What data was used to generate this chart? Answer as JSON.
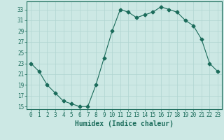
{
  "xlabel": "Humidex (Indice chaleur)",
  "x": [
    0,
    1,
    2,
    3,
    4,
    5,
    6,
    7,
    8,
    9,
    10,
    11,
    12,
    13,
    14,
    15,
    16,
    17,
    18,
    19,
    20,
    21,
    22,
    23
  ],
  "y": [
    23,
    21.5,
    19,
    17.5,
    16,
    15.5,
    15,
    15,
    19,
    24,
    29,
    33,
    32.5,
    31.5,
    32,
    32.5,
    33.5,
    33,
    32.5,
    31,
    30,
    27.5,
    23,
    21.5
  ],
  "line_color": "#1a6b5a",
  "marker": "D",
  "marker_size": 2.5,
  "bg_color": "#cce8e4",
  "grid_color": "#b0d4d0",
  "ylim": [
    14.5,
    34.5
  ],
  "yticks": [
    15,
    17,
    19,
    21,
    23,
    25,
    27,
    29,
    31,
    33
  ],
  "xlim": [
    -0.5,
    23.5
  ],
  "xticks": [
    0,
    1,
    2,
    3,
    4,
    5,
    6,
    7,
    8,
    9,
    10,
    11,
    12,
    13,
    14,
    15,
    16,
    17,
    18,
    19,
    20,
    21,
    22,
    23
  ],
  "tick_label_fontsize": 5.5,
  "xlabel_fontsize": 7,
  "label_color": "#1a6b5a",
  "axis_bg": "#cce8e4"
}
